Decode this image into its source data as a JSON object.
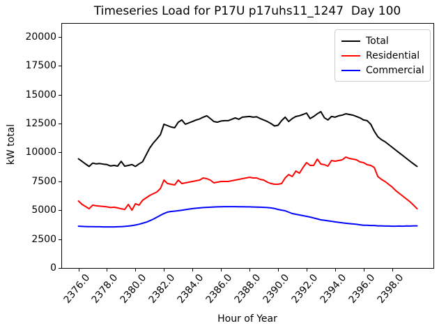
{
  "chart_data": {
    "type": "line",
    "title": "Timeseries Load for P17U p17uhs11_1247  Day 100",
    "xlabel": "Hour of Year",
    "ylabel": "kW total",
    "grid": false,
    "legend_position": "upper right",
    "xlim": [
      2374.8,
      2400.9
    ],
    "ylim": [
      0,
      21200
    ],
    "xticks": {
      "values": [
        2376,
        2378,
        2380,
        2382,
        2384,
        2386,
        2388,
        2390,
        2392,
        2394,
        2396,
        2398
      ],
      "labels": [
        "2376.0",
        "2378.0",
        "2380.0",
        "2382.0",
        "2384.0",
        "2386.0",
        "2388.0",
        "2390.0",
        "2392.0",
        "2394.0",
        "2396.0",
        "2398.0"
      ]
    },
    "yticks": {
      "values": [
        0,
        2500,
        5000,
        7500,
        10000,
        12500,
        15000,
        17500,
        20000
      ],
      "labels": [
        "0",
        "2500",
        "5000",
        "7500",
        "10000",
        "12500",
        "15000",
        "17500",
        "20000"
      ]
    },
    "x": [
      2376,
      2376.25,
      2376.5,
      2376.75,
      2377,
      2377.25,
      2377.5,
      2377.75,
      2378,
      2378.25,
      2378.5,
      2378.75,
      2379,
      2379.25,
      2379.5,
      2379.75,
      2380,
      2380.25,
      2380.5,
      2380.75,
      2381,
      2381.25,
      2381.5,
      2381.75,
      2382,
      2382.25,
      2382.5,
      2382.75,
      2383,
      2383.25,
      2383.5,
      2383.75,
      2384,
      2384.25,
      2384.5,
      2384.75,
      2385,
      2385.25,
      2385.5,
      2385.75,
      2386,
      2386.25,
      2386.5,
      2386.75,
      2387,
      2387.25,
      2387.5,
      2387.75,
      2388,
      2388.25,
      2388.5,
      2388.75,
      2389,
      2389.25,
      2389.5,
      2389.75,
      2390,
      2390.25,
      2390.5,
      2390.75,
      2391,
      2391.25,
      2391.5,
      2391.75,
      2392,
      2392.25,
      2392.5,
      2392.75,
      2393,
      2393.25,
      2393.5,
      2393.75,
      2394,
      2394.25,
      2394.5,
      2394.75,
      2395,
      2395.25,
      2395.5,
      2395.75,
      2396,
      2396.25,
      2396.5,
      2396.75,
      2397,
      2397.25,
      2397.5,
      2397.75,
      2398,
      2398.25,
      2398.5,
      2398.75,
      2399,
      2399.25,
      2399.5,
      2399.75
    ],
    "series": [
      {
        "name": "Total",
        "color": "#000000",
        "values": [
          9450,
          9230,
          9000,
          8790,
          9080,
          9010,
          9040,
          8990,
          8950,
          8830,
          8880,
          8820,
          9230,
          8810,
          8880,
          8950,
          8790,
          9010,
          9190,
          9790,
          10390,
          10820,
          11170,
          11540,
          12440,
          12320,
          12200,
          12140,
          12620,
          12810,
          12440,
          12560,
          12680,
          12810,
          12900,
          13050,
          13170,
          12930,
          12680,
          12620,
          12720,
          12750,
          12750,
          12870,
          12990,
          12870,
          13050,
          13080,
          13110,
          13050,
          13080,
          12930,
          12810,
          12680,
          12500,
          12290,
          12350,
          12750,
          13050,
          12680,
          12930,
          13110,
          13180,
          13290,
          13410,
          12930,
          13110,
          13350,
          13530,
          13000,
          12810,
          13110,
          13050,
          13170,
          13230,
          13350,
          13290,
          13230,
          13110,
          12990,
          12810,
          12750,
          12440,
          11840,
          11360,
          11110,
          10930,
          10690,
          10450,
          10210,
          9970,
          9730,
          9490,
          9250,
          9010,
          8790
        ]
      },
      {
        "name": "Residential",
        "color": "#ff0000",
        "values": [
          5800,
          5500,
          5320,
          5130,
          5440,
          5380,
          5350,
          5320,
          5290,
          5230,
          5260,
          5200,
          5130,
          5070,
          5500,
          5010,
          5560,
          5440,
          5860,
          6070,
          6280,
          6430,
          6580,
          6880,
          7610,
          7310,
          7250,
          7190,
          7610,
          7310,
          7370,
          7430,
          7490,
          7550,
          7610,
          7790,
          7730,
          7610,
          7370,
          7430,
          7490,
          7490,
          7490,
          7550,
          7610,
          7670,
          7730,
          7790,
          7850,
          7790,
          7790,
          7670,
          7610,
          7430,
          7310,
          7250,
          7250,
          7310,
          7790,
          8090,
          7910,
          8390,
          8210,
          8700,
          9120,
          8880,
          8880,
          9420,
          9000,
          8940,
          8820,
          9300,
          9240,
          9300,
          9360,
          9600,
          9480,
          9420,
          9360,
          9180,
          9120,
          8940,
          8880,
          8700,
          7910,
          7670,
          7490,
          7250,
          7010,
          6700,
          6460,
          6220,
          5980,
          5740,
          5440,
          5130
        ]
      },
      {
        "name": "Commercial",
        "color": "#0000ff",
        "values": [
          3620,
          3600,
          3590,
          3580,
          3580,
          3570,
          3570,
          3560,
          3560,
          3560,
          3560,
          3570,
          3580,
          3600,
          3630,
          3670,
          3720,
          3790,
          3870,
          3960,
          4090,
          4230,
          4400,
          4560,
          4720,
          4840,
          4890,
          4920,
          4960,
          5000,
          5050,
          5100,
          5140,
          5170,
          5200,
          5230,
          5250,
          5260,
          5280,
          5290,
          5300,
          5310,
          5310,
          5310,
          5310,
          5300,
          5300,
          5290,
          5290,
          5280,
          5270,
          5260,
          5250,
          5230,
          5200,
          5150,
          5070,
          5010,
          4950,
          4830,
          4710,
          4650,
          4590,
          4530,
          4470,
          4410,
          4330,
          4250,
          4170,
          4130,
          4080,
          4040,
          3990,
          3950,
          3910,
          3870,
          3840,
          3810,
          3780,
          3740,
          3700,
          3700,
          3680,
          3680,
          3650,
          3650,
          3630,
          3630,
          3620,
          3620,
          3630,
          3620,
          3640,
          3630,
          3650,
          3650
        ]
      }
    ]
  }
}
